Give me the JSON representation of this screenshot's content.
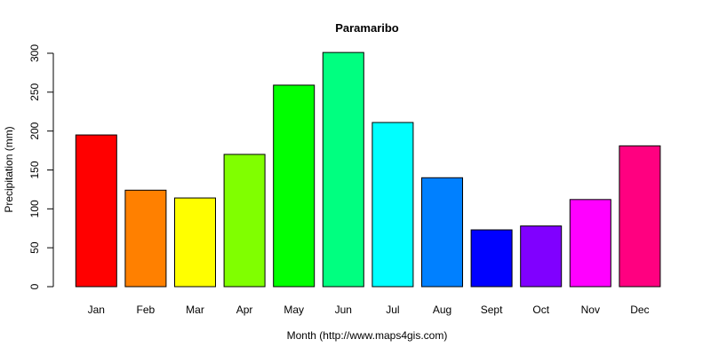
{
  "chart_data": {
    "type": "bar",
    "title": "Paramaribo",
    "x_label": "Month (http://www.maps4gis.com)",
    "y_label": "Precipitation (mm)",
    "categories": [
      "Jan",
      "Feb",
      "Mar",
      "Apr",
      "May",
      "Jun",
      "Jul",
      "Aug",
      "Sept",
      "Oct",
      "Nov",
      "Dec"
    ],
    "values": [
      195,
      124,
      114,
      170,
      259,
      301,
      211,
      140,
      73,
      78,
      112,
      181
    ],
    "colors": [
      "#FF0000",
      "#FF8000",
      "#FFFF00",
      "#80FF00",
      "#00FF00",
      "#00FF80",
      "#00FFFF",
      "#0080FF",
      "#0000FF",
      "#8000FF",
      "#FF00FF",
      "#FF0080"
    ],
    "ylim": [
      0,
      300
    ],
    "yticks": [
      0,
      50,
      100,
      150,
      200,
      250,
      300
    ]
  }
}
